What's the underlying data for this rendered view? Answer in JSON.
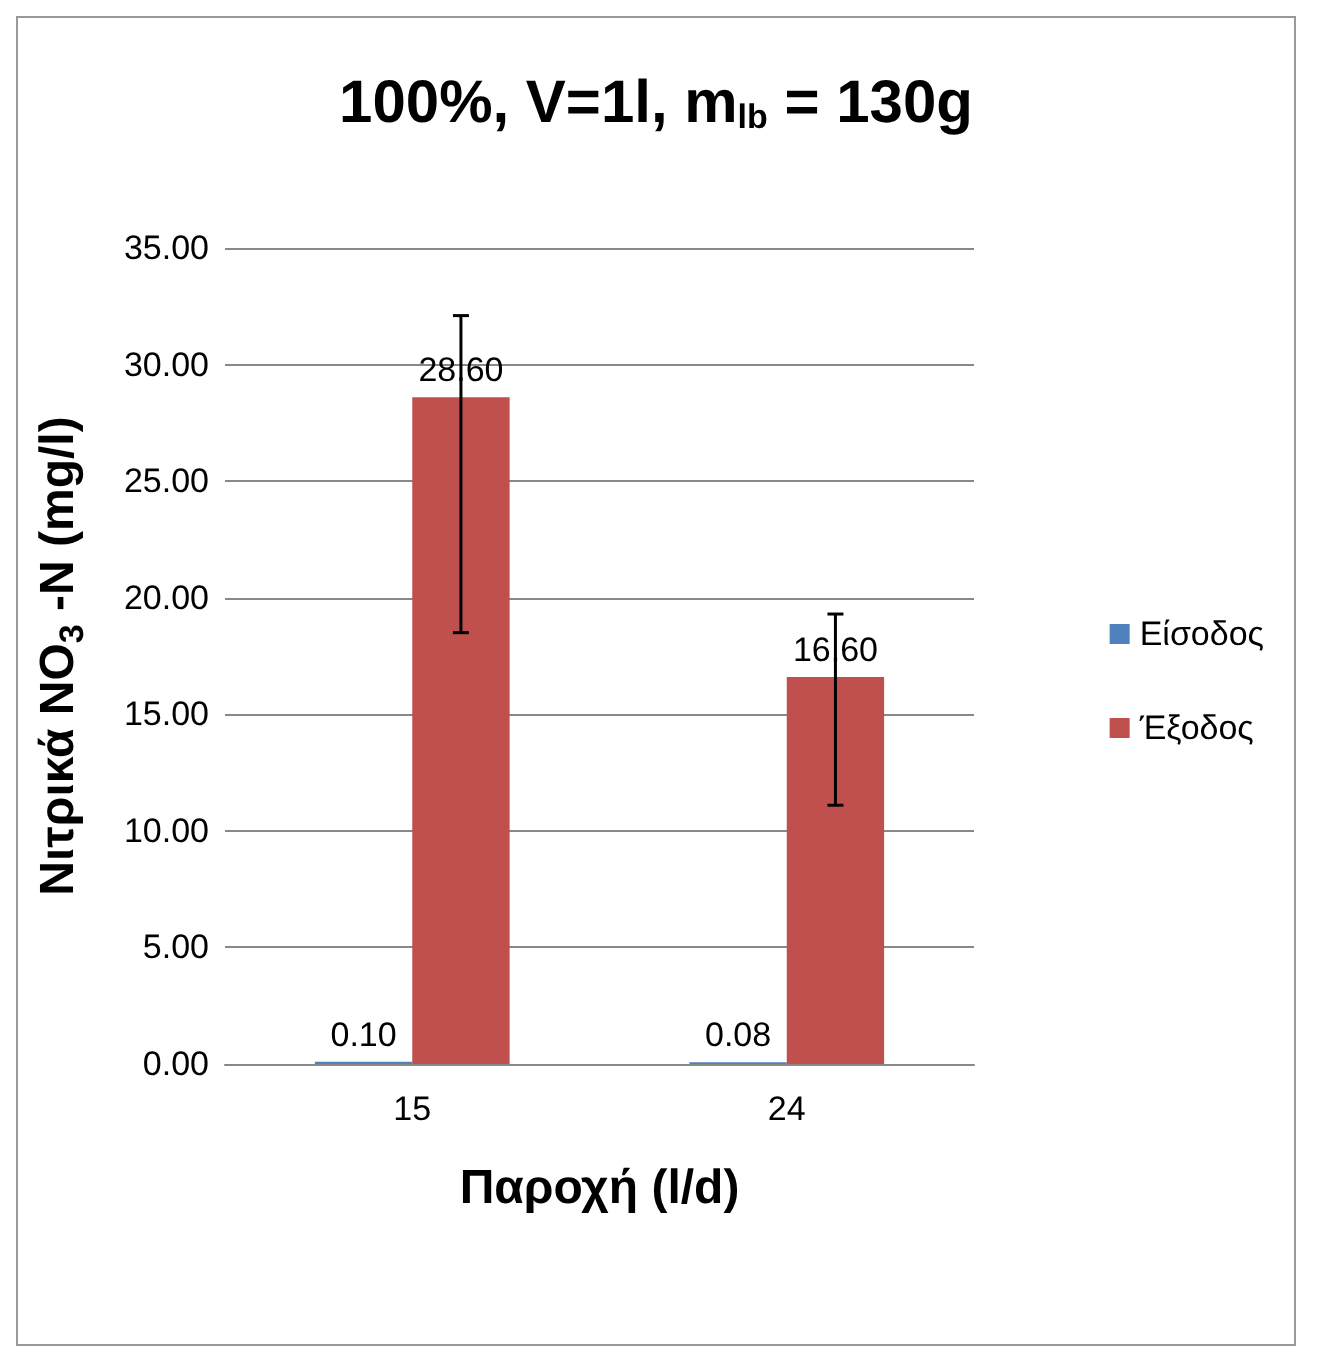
{
  "chart_data": {
    "type": "bar",
    "title": "100%, V=1l, m$_{lb}$ = 130g",
    "xlabel": "Παροχή (l/d)",
    "ylabel": "Νιτρικά NO$_{3}$ -N (mg/l)",
    "categories": [
      "15",
      "24"
    ],
    "series": [
      {
        "name": "Είσοδος",
        "color": "#4f81bd",
        "values": [
          0.1,
          0.08
        ],
        "value_labels": [
          "0.10",
          "0.08"
        ]
      },
      {
        "name": "Έξοδος",
        "color": "#c0504d",
        "values": [
          28.6,
          16.6
        ],
        "value_labels": [
          "28.60",
          "16.60"
        ],
        "errors": [
          [
            18.5,
            32.1
          ],
          [
            11.1,
            19.3
          ]
        ]
      }
    ],
    "ylim": [
      0,
      35
    ],
    "yticks": [
      {
        "value": 0,
        "label": "0.00"
      },
      {
        "value": 5,
        "label": "5.00"
      },
      {
        "value": 10,
        "label": "10.00"
      },
      {
        "value": 15,
        "label": "15.00"
      },
      {
        "value": 20,
        "label": "20.00"
      },
      {
        "value": 25,
        "label": "25.00"
      },
      {
        "value": 30,
        "label": "30.00"
      },
      {
        "value": 35,
        "label": "35.00"
      }
    ],
    "grid": "y",
    "legend": "right"
  }
}
